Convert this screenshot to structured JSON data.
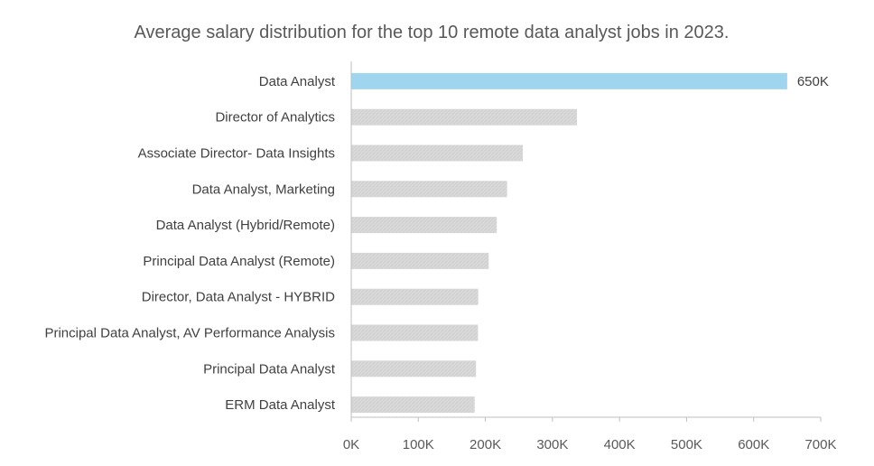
{
  "chart_data": {
    "type": "bar",
    "orientation": "horizontal",
    "title": "Average salary distribution for the top 10 remote data analyst jobs in 2023.",
    "xlabel": "",
    "ylabel": "",
    "categories": [
      "Data Analyst",
      "Director of Analytics",
      "Associate Director- Data Insights",
      "Data Analyst, Marketing",
      "Data Analyst (Hybrid/Remote)",
      "Principal Data Analyst (Remote)",
      "Director, Data Analyst - HYBRID",
      "Principal Data Analyst, AV Performance Analysis",
      "Principal Data Analyst",
      "ERM Data Analyst"
    ],
    "values": [
      650000,
      336500,
      255830,
      232423,
      217000,
      205000,
      189309,
      189000,
      186000,
      184000
    ],
    "data_labels": [
      "650K",
      "",
      "",
      "",
      "",
      "",
      "",
      "",
      "",
      ""
    ],
    "xlim": [
      0,
      700000
    ],
    "x_ticks": [
      0,
      100000,
      200000,
      300000,
      400000,
      500000,
      600000,
      700000
    ],
    "x_tick_labels": [
      "0K",
      "100K",
      "200K",
      "300K",
      "400K",
      "500K",
      "600K",
      "700K"
    ],
    "grid": false,
    "legend": "none",
    "colors": {
      "highlight": "#9fd5ef",
      "bar": "#d9d9d9",
      "axis": "#bfbfbf"
    }
  }
}
